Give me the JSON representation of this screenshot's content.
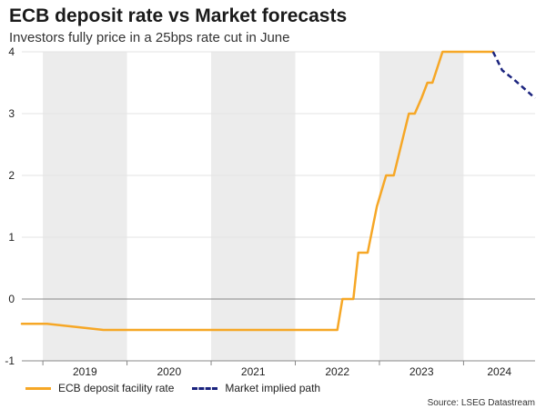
{
  "chart_data": {
    "type": "line",
    "title": "ECB deposit rate vs Market forecasts",
    "subtitle": "Investors fully price in a 25bps rate cut in June",
    "ylim": [
      -1,
      4
    ],
    "yticks": [
      -1,
      0,
      1,
      2,
      3,
      4
    ],
    "xlim": [
      2018.75,
      2024.85
    ],
    "year_labels": [
      "2019",
      "2020",
      "2021",
      "2022",
      "2023",
      "2024"
    ],
    "shaded_years": [
      2019,
      2021,
      2023
    ],
    "series": [
      {
        "name": "ECB deposit facility rate",
        "color": "#f6a726",
        "style": "solid",
        "points": [
          [
            2018.75,
            -0.4
          ],
          [
            2019.0,
            -0.4
          ],
          [
            2019.05,
            -0.4
          ],
          [
            2019.72,
            -0.5
          ],
          [
            2022.5,
            -0.5
          ],
          [
            2022.56,
            0.0
          ],
          [
            2022.69,
            0.0
          ],
          [
            2022.75,
            0.75
          ],
          [
            2022.86,
            0.75
          ],
          [
            2022.97,
            1.5
          ],
          [
            2023.08,
            2.0
          ],
          [
            2023.17,
            2.0
          ],
          [
            2023.26,
            2.5
          ],
          [
            2023.35,
            3.0
          ],
          [
            2023.42,
            3.0
          ],
          [
            2023.5,
            3.25
          ],
          [
            2023.57,
            3.5
          ],
          [
            2023.63,
            3.5
          ],
          [
            2023.75,
            4.0
          ],
          [
            2024.35,
            4.0
          ]
        ]
      },
      {
        "name": "Market implied path",
        "color": "#1a237e",
        "style": "dashed",
        "points": [
          [
            2024.35,
            4.0
          ],
          [
            2024.46,
            3.7
          ],
          [
            2024.6,
            3.55
          ],
          [
            2024.75,
            3.37
          ],
          [
            2024.85,
            3.25
          ]
        ]
      }
    ],
    "source": "Source: LSEG Datastream"
  }
}
